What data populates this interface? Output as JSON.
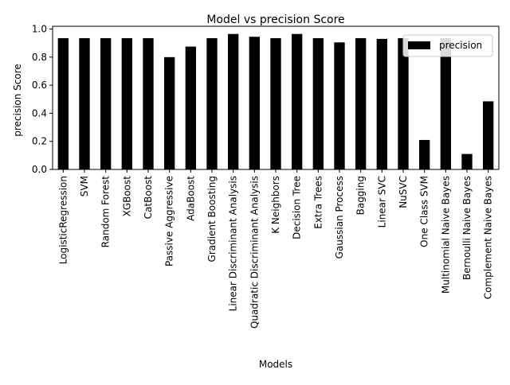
{
  "chart_data": {
    "type": "bar",
    "title": "Model vs precision Score",
    "xlabel": "Models",
    "ylabel": "precision Score",
    "ylim": [
      0,
      1.02
    ],
    "yticks": [
      0.0,
      0.2,
      0.4,
      0.6,
      0.8,
      1.0
    ],
    "ytick_labels": [
      "0.0",
      "0.2",
      "0.4",
      "0.6",
      "0.8",
      "1.0"
    ],
    "grid": false,
    "legend": {
      "position": "top-right",
      "entries": [
        "precision"
      ]
    },
    "bar_color": "#000000",
    "categories": [
      "LogisticRegression",
      "SVM",
      "Random Forest",
      "XGBoost",
      "CatBoost",
      "Passive Aggressive",
      "AdaBoost",
      "Gradient Boosting",
      "Linear Discriminant Analysis",
      "Quadratic Discriminant Analysis",
      "K Neighbors",
      "Decision Tree",
      "Extra Trees",
      "Gaussian Process",
      "Bagging",
      "Linear SVC",
      "NuSVC",
      "One Class SVM",
      "Multinomial Naive Bayes",
      "Bernoulli Naive Bayes",
      "Complement Naive Bayes"
    ],
    "series": [
      {
        "name": "precision",
        "values": [
          0.935,
          0.935,
          0.935,
          0.935,
          0.935,
          0.8,
          0.875,
          0.935,
          0.965,
          0.945,
          0.935,
          0.965,
          0.935,
          0.905,
          0.935,
          0.93,
          0.935,
          0.21,
          0.935,
          0.11,
          0.485
        ]
      }
    ]
  }
}
